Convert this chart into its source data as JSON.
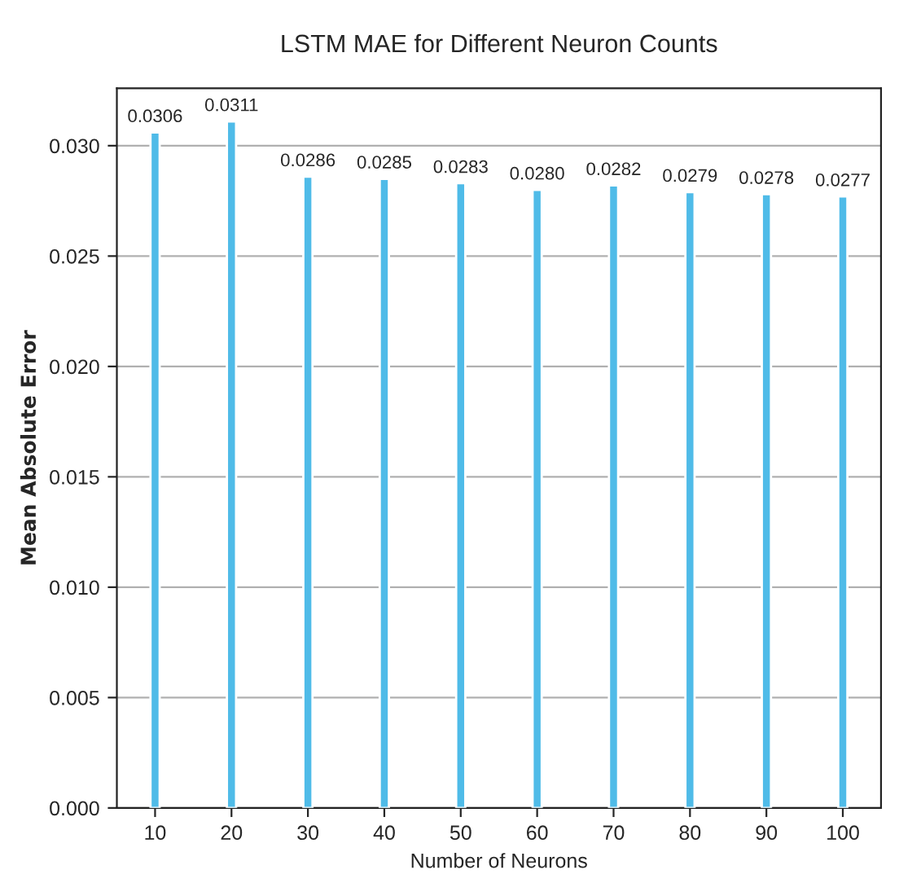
{
  "chart_data": {
    "type": "bar",
    "title": "LSTM MAE for Different Neuron Counts",
    "xlabel": "Number of Neurons",
    "ylabel": "Mean Absolute Error",
    "x": [
      10,
      20,
      30,
      40,
      50,
      60,
      70,
      80,
      90,
      100
    ],
    "values": [
      0.0306,
      0.0311,
      0.0286,
      0.0285,
      0.0283,
      0.028,
      0.0282,
      0.0279,
      0.0278,
      0.0277
    ],
    "color": "#4fbbe8",
    "xlim": [
      5,
      105
    ],
    "xticks": [
      10,
      20,
      30,
      40,
      50,
      60,
      70,
      80,
      90,
      100
    ],
    "ylim": [
      0,
      0.0326
    ],
    "yticks": [
      {
        "value": 0,
        "label": "0.000"
      },
      {
        "value": 0.005,
        "label": "0.005"
      },
      {
        "value": 0.01,
        "label": "0.010"
      },
      {
        "value": 0.015,
        "label": "0.015"
      },
      {
        "value": 0.02,
        "label": "0.020"
      },
      {
        "value": 0.025,
        "label": "0.025"
      },
      {
        "value": 0.03,
        "label": "0.030"
      }
    ],
    "value_labels": [
      "0.0306",
      "0.0311",
      "0.0286",
      "0.0285",
      "0.0283",
      "0.0280",
      "0.0282",
      "0.0279",
      "0.0278",
      "0.0277"
    ],
    "grid": "y"
  }
}
